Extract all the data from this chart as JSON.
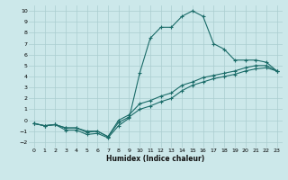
{
  "xlabel": "Humidex (Indice chaleur)",
  "bg_color": "#cce8ea",
  "grid_color": "#aacdd0",
  "line_color": "#1a6b68",
  "xlim": [
    -0.5,
    23.5
  ],
  "ylim": [
    -2.5,
    10.5
  ],
  "xticks": [
    0,
    1,
    2,
    3,
    4,
    5,
    6,
    7,
    8,
    9,
    10,
    11,
    12,
    13,
    14,
    15,
    16,
    17,
    18,
    19,
    20,
    21,
    22,
    23
  ],
  "yticks": [
    -2,
    -1,
    0,
    1,
    2,
    3,
    4,
    5,
    6,
    7,
    8,
    9,
    10
  ],
  "curve1_x": [
    0,
    1,
    2,
    3,
    4,
    5,
    6,
    7,
    8,
    9,
    10,
    11,
    12,
    13,
    14,
    15,
    16,
    17,
    18,
    19,
    20,
    21,
    22,
    23
  ],
  "curve1_y": [
    -0.3,
    -0.5,
    -0.4,
    -0.9,
    -0.9,
    -1.3,
    -1.2,
    -1.6,
    -0.5,
    0.2,
    4.3,
    7.5,
    8.5,
    8.5,
    9.5,
    10.0,
    9.5,
    7.0,
    6.5,
    5.5,
    5.5,
    5.5,
    5.3,
    4.5
  ],
  "curve2_x": [
    0,
    1,
    2,
    3,
    4,
    5,
    6,
    7,
    8,
    9,
    10,
    11,
    12,
    13,
    14,
    15,
    16,
    17,
    18,
    19,
    20,
    21,
    22,
    23
  ],
  "curve2_y": [
    -0.3,
    -0.5,
    -0.4,
    -0.7,
    -0.7,
    -1.0,
    -1.0,
    -1.5,
    -0.2,
    0.3,
    1.0,
    1.3,
    1.7,
    2.0,
    2.7,
    3.2,
    3.5,
    3.8,
    4.0,
    4.2,
    4.5,
    4.7,
    4.8,
    4.5
  ],
  "curve3_x": [
    0,
    1,
    2,
    3,
    4,
    5,
    6,
    7,
    8,
    9,
    10,
    11,
    12,
    13,
    14,
    15,
    16,
    17,
    18,
    19,
    20,
    21,
    22,
    23
  ],
  "curve3_y": [
    -0.3,
    -0.5,
    -0.4,
    -0.7,
    -0.7,
    -1.1,
    -1.0,
    -1.5,
    0.0,
    0.5,
    1.5,
    1.8,
    2.2,
    2.5,
    3.2,
    3.5,
    3.9,
    4.1,
    4.3,
    4.5,
    4.8,
    5.0,
    5.0,
    4.5
  ]
}
